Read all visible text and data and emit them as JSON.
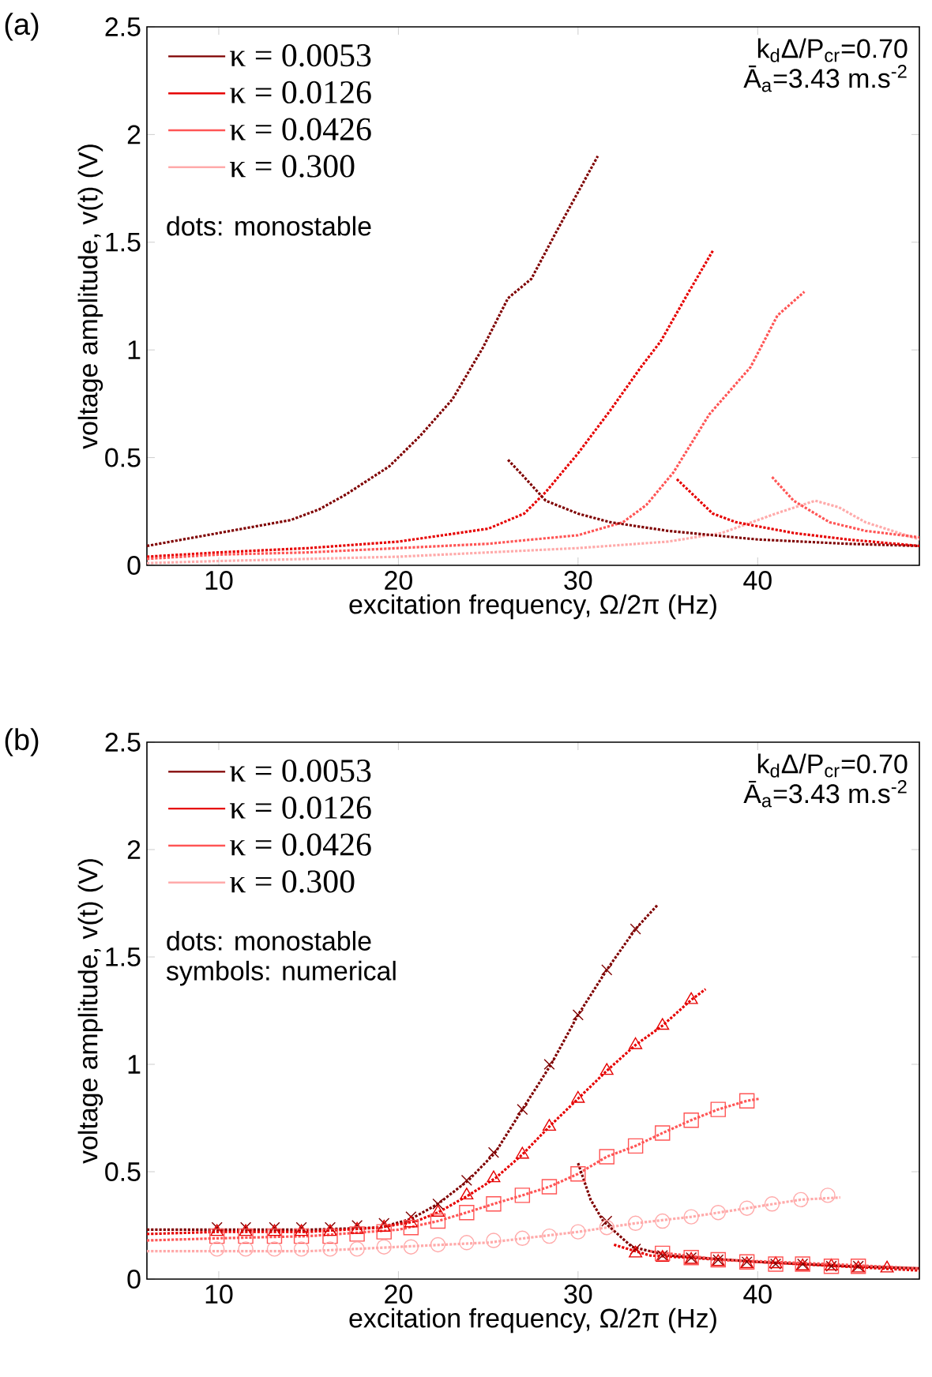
{
  "chart_data": [
    {
      "type": "line",
      "title": "(a)",
      "xlabel": "excitation frequency, Ω/2π (Hz)",
      "ylabel": "voltage amplitude, v(t) (V)",
      "xlim": [
        6,
        49
      ],
      "xticks": [
        10,
        20,
        30,
        40
      ],
      "ylim": [
        0,
        2.5
      ],
      "yticks": [
        0,
        0.5,
        1,
        1.5,
        2,
        2.5
      ],
      "legend": "top left",
      "line_style": "dotted",
      "annotations": [
        "k$_{d}$Δ/P$_{cr}$=0.70",
        "Ā$_{a}$=3.43 m.s$^{-2}$",
        "dots: monostable"
      ],
      "series": [
        {
          "name": "κ = 0.0053",
          "color": "#7f0000",
          "x": [
            6,
            8,
            10,
            12,
            14,
            15.6,
            17.1,
            19.5,
            21.2,
            23,
            24.7,
            26.1,
            27.4,
            28.8,
            31.1
          ],
          "values": [
            0.09,
            0.12,
            0.15,
            0.18,
            0.21,
            0.26,
            0.33,
            0.46,
            0.6,
            0.77,
            1.01,
            1.24,
            1.33,
            1.55,
            1.9
          ]
        },
        {
          "name": "κ = 0.0126",
          "color": "#e60000",
          "x": [
            6,
            10,
            15,
            20,
            25,
            27,
            28.2,
            30,
            31.8,
            33.5,
            34.6,
            36.1,
            37.5
          ],
          "values": [
            0.04,
            0.06,
            0.08,
            0.11,
            0.17,
            0.24,
            0.34,
            0.52,
            0.72,
            0.92,
            1.04,
            1.26,
            1.46
          ]
        },
        {
          "name": "κ = 0.0426",
          "color": "#ff5555",
          "x": [
            6,
            10,
            15,
            20,
            25,
            30,
            32.5,
            33.8,
            35.3,
            37.3,
            39.6,
            41.1,
            42.6
          ],
          "values": [
            0.03,
            0.05,
            0.06,
            0.08,
            0.1,
            0.14,
            0.2,
            0.28,
            0.43,
            0.7,
            0.92,
            1.16,
            1.27
          ]
        },
        {
          "name": "κ = 0.300",
          "color": "#ffaaaa",
          "x": [
            6,
            10,
            15,
            20,
            25,
            30,
            35,
            38,
            41,
            43.2,
            44.5,
            46,
            49
          ],
          "values": [
            0.01,
            0.02,
            0.03,
            0.04,
            0.06,
            0.08,
            0.11,
            0.15,
            0.24,
            0.3,
            0.27,
            0.2,
            0.12
          ]
        },
        {
          "color": "#7f0000",
          "x": [
            26.1,
            27,
            28.2,
            30,
            31.8,
            35,
            40,
            45,
            49
          ],
          "values": [
            0.49,
            0.41,
            0.3,
            0.24,
            0.2,
            0.16,
            0.12,
            0.1,
            0.09
          ]
        },
        {
          "color": "#e60000",
          "x": [
            35.5,
            37.5,
            38.8,
            42,
            45,
            49
          ],
          "values": [
            0.4,
            0.24,
            0.2,
            0.15,
            0.12,
            0.09
          ]
        },
        {
          "color": "#ff5555",
          "x": [
            40.8,
            42,
            44,
            46,
            49
          ],
          "values": [
            0.41,
            0.3,
            0.2,
            0.16,
            0.13
          ]
        }
      ]
    },
    {
      "type": "line",
      "title": "(b)",
      "xlabel": "excitation frequency, Ω/2π (Hz)",
      "ylabel": "voltage amplitude, v(t) (V)",
      "xlim": [
        6,
        49
      ],
      "xticks": [
        10,
        20,
        30,
        40
      ],
      "ylim": [
        0,
        2.5
      ],
      "yticks": [
        0,
        0.5,
        1,
        1.5,
        2,
        2.5
      ],
      "legend": "top left",
      "line_style": "dotted",
      "annotations": [
        "k$_{d}$Δ/P$_{cr}$=0.70",
        "Ā$_{a}$=3.43 m.s$^{-2}$",
        "dots: monostable",
        "symbols: numerical"
      ],
      "series": [
        {
          "name": "κ = 0.0053",
          "color": "#7f0000",
          "x": [
            6,
            10,
            15,
            19,
            20.7,
            22.2,
            23.9,
            25.4,
            26.9,
            28.5,
            30,
            31.6,
            33.2,
            34.4
          ],
          "values": [
            0.23,
            0.23,
            0.23,
            0.24,
            0.28,
            0.35,
            0.46,
            0.59,
            0.79,
            1.0,
            1.23,
            1.44,
            1.63,
            1.74
          ]
        },
        {
          "name": "κ = 0.0126",
          "color": "#e60000",
          "x": [
            6,
            10,
            15,
            19,
            21,
            22.2,
            23.9,
            25.4,
            26.9,
            28.4,
            30,
            31.6,
            33.2,
            34.7,
            36.3,
            37.1
          ],
          "values": [
            0.21,
            0.22,
            0.22,
            0.24,
            0.27,
            0.31,
            0.39,
            0.47,
            0.58,
            0.71,
            0.84,
            0.97,
            1.09,
            1.18,
            1.3,
            1.35
          ]
        },
        {
          "name": "κ = 0.0426",
          "color": "#ff5555",
          "x": [
            6,
            10,
            15,
            20,
            22.2,
            23.8,
            25.3,
            26.9,
            28.4,
            30,
            31.6,
            33.2,
            34.7,
            36.3,
            37.8,
            39.4,
            40.1
          ],
          "values": [
            0.18,
            0.19,
            0.2,
            0.23,
            0.27,
            0.31,
            0.35,
            0.39,
            0.43,
            0.49,
            0.57,
            0.62,
            0.68,
            0.74,
            0.79,
            0.83,
            0.84
          ]
        },
        {
          "name": "κ = 0.300",
          "color": "#ffaaaa",
          "x": [
            6,
            10,
            15,
            20,
            25,
            30,
            33.2,
            36.3,
            39.4,
            42.4,
            44.6
          ],
          "values": [
            0.13,
            0.13,
            0.13,
            0.15,
            0.17,
            0.22,
            0.26,
            0.29,
            0.33,
            0.37,
            0.38
          ]
        },
        {
          "color": "#7f0000",
          "x": [
            30,
            30.7,
            31.4,
            33,
            35,
            40,
            45,
            49
          ],
          "values": [
            0.54,
            0.37,
            0.27,
            0.15,
            0.11,
            0.08,
            0.06,
            0.05
          ]
        },
        {
          "color": "#e60000",
          "x": [
            32,
            34,
            40,
            49
          ],
          "values": [
            0.16,
            0.11,
            0.08,
            0.04
          ]
        },
        {
          "color": "#ff5555",
          "x": [
            34,
            38,
            44,
            49
          ],
          "values": [
            0.13,
            0.09,
            0.07,
            0.05
          ]
        },
        {
          "type": "scatter",
          "marker": "cross",
          "color": "#7f0000",
          "x": [
            9.9,
            11.5,
            13.1,
            14.6,
            16.2,
            17.7,
            19.2,
            20.7,
            22.2,
            23.8,
            25.3,
            26.9,
            28.4,
            30,
            31.6,
            33.2,
            31.6,
            33.2,
            34.7,
            36.3,
            37.8,
            39.4,
            41,
            42.5,
            44.1,
            45.6
          ],
          "values": [
            0.24,
            0.24,
            0.24,
            0.24,
            0.24,
            0.25,
            0.26,
            0.29,
            0.35,
            0.46,
            0.59,
            0.79,
            1.0,
            1.23,
            1.44,
            1.63,
            0.27,
            0.14,
            0.11,
            0.1,
            0.09,
            0.08,
            0.07,
            0.07,
            0.06,
            0.06
          ]
        },
        {
          "type": "scatter",
          "marker": "triangle",
          "color": "#e60000",
          "x": [
            9.9,
            11.5,
            13.1,
            14.6,
            16.2,
            17.7,
            19.2,
            20.7,
            22.2,
            23.8,
            25.3,
            26.9,
            28.4,
            30,
            31.6,
            33.2,
            34.7,
            36.3,
            33.2,
            34.7,
            36.3,
            37.8,
            39.4,
            41,
            42.5,
            44.1,
            45.6,
            47.2
          ],
          "values": [
            0.22,
            0.22,
            0.22,
            0.22,
            0.22,
            0.23,
            0.24,
            0.26,
            0.31,
            0.39,
            0.47,
            0.58,
            0.71,
            0.84,
            0.97,
            1.09,
            1.18,
            1.3,
            0.12,
            0.1,
            0.09,
            0.08,
            0.07,
            0.07,
            0.06,
            0.06,
            0.05,
            0.05
          ]
        },
        {
          "type": "scatter",
          "marker": "square",
          "color": "#ff5555",
          "x": [
            9.9,
            11.5,
            13.1,
            14.6,
            16.2,
            17.7,
            19.2,
            20.7,
            22.2,
            23.8,
            25.3,
            26.9,
            28.4,
            30,
            31.6,
            33.2,
            34.7,
            36.3,
            37.8,
            39.4,
            34.7,
            36.3,
            37.8,
            39.4,
            41,
            42.5,
            44.1,
            45.6
          ],
          "values": [
            0.2,
            0.2,
            0.2,
            0.2,
            0.2,
            0.21,
            0.22,
            0.24,
            0.27,
            0.31,
            0.35,
            0.39,
            0.43,
            0.49,
            0.57,
            0.62,
            0.68,
            0.74,
            0.79,
            0.83,
            0.12,
            0.1,
            0.09,
            0.08,
            0.07,
            0.07,
            0.06,
            0.06
          ]
        },
        {
          "type": "scatter",
          "marker": "circle",
          "color": "#ffaaaa",
          "x": [
            9.9,
            11.5,
            13.1,
            14.6,
            16.2,
            17.7,
            19.2,
            20.7,
            22.2,
            23.8,
            25.3,
            26.9,
            28.4,
            30,
            31.6,
            33.2,
            34.7,
            36.3,
            37.8,
            39.4,
            40.8,
            42.4,
            43.9
          ],
          "values": [
            0.14,
            0.14,
            0.14,
            0.14,
            0.14,
            0.14,
            0.15,
            0.15,
            0.16,
            0.17,
            0.18,
            0.19,
            0.2,
            0.22,
            0.24,
            0.26,
            0.27,
            0.29,
            0.31,
            0.33,
            0.35,
            0.37,
            0.39
          ]
        }
      ]
    }
  ]
}
